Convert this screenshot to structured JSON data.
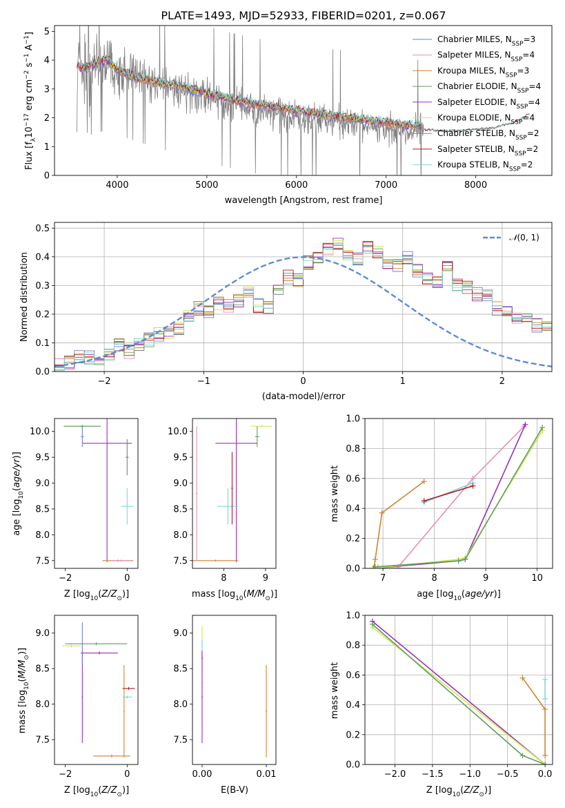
{
  "colors": {
    "Chabrier MILES": "#6b7fd7",
    "Salpeter MILES": "#e58fb8",
    "Kroupa MILES": "#d1842f",
    "Chabrier ELODIE": "#5f9e5f",
    "Salpeter ELODIE": "#9b2fb5",
    "Kroupa ELODIE": "#cfe84a",
    "Chabrier STELIB": "#7f7f7f",
    "Salpeter STELIB": "#b0181a",
    "Kroupa STELIB": "#7fd6d8",
    "gaussian": "#5b8bd6",
    "data": "#808080"
  },
  "chart_data": [
    {
      "type": "line",
      "title": "PLATE=1493, MJD=52933, FIBERID=0201, z=0.067",
      "xlabel": "wavelength [Angstrom, rest frame]",
      "ylabel": "Flux [f_λ 10^-17 erg cm^-2 s^-1 A^-1]",
      "xlim": [
        3300,
        8850
      ],
      "ylim": [
        0,
        5.2
      ],
      "xticks": [
        4000,
        5000,
        6000,
        7000,
        8000
      ],
      "yticks": [
        0,
        1,
        2,
        3,
        4,
        5
      ],
      "legend_position": "top-right",
      "legend": [
        "Chabrier MILES, N_SSP=3",
        "Salpeter MILES, N_SSP=4",
        "Kroupa MILES, N_SSP=3",
        "Chabrier ELODIE, N_SSP=4",
        "Salpeter ELODIE, N_SSP=4",
        "Kroupa ELODIE, N_SSP=4",
        "Chabrier STELIB, N_SSP=2",
        "Salpeter STELIB, N_SSP=2",
        "Kroupa STELIB, N_SSP=2"
      ],
      "data_continuum": {
        "x": [
          3550,
          3700,
          3900,
          4000,
          4200,
          4500,
          4800,
          5000,
          5200,
          5500,
          5800,
          6000,
          6200,
          6500,
          6800,
          7000,
          7200,
          7400
        ],
        "y": [
          3.9,
          3.6,
          3.8,
          3.6,
          3.4,
          3.1,
          2.9,
          2.7,
          2.5,
          2.3,
          2.1,
          2.0,
          1.95,
          1.85,
          1.7,
          1.6,
          1.55,
          1.5
        ]
      },
      "model_continuum": {
        "x": [
          3550,
          3600,
          3700,
          3800,
          3900,
          4000,
          4100,
          4200,
          4300,
          4400,
          4500,
          4600,
          4700,
          4800,
          4900,
          5000,
          5200,
          5400,
          5600,
          5800,
          6000,
          6200,
          6400,
          6600,
          6800,
          7000,
          7200,
          7400,
          7600,
          7800,
          8000,
          8200,
          8400,
          8600
        ],
        "y": [
          3.85,
          3.7,
          3.8,
          3.95,
          4.0,
          3.65,
          3.55,
          3.4,
          3.35,
          3.25,
          3.2,
          3.15,
          3.1,
          3.0,
          2.95,
          2.85,
          2.7,
          2.55,
          2.45,
          2.35,
          2.25,
          2.15,
          2.05,
          2.0,
          1.9,
          1.85,
          1.75,
          1.7,
          1.65,
          1.6,
          1.6,
          1.65,
          1.7,
          1.75
        ]
      },
      "stelib_extension": {
        "x": [
          7400,
          7600,
          7800,
          8000,
          8200,
          8300,
          8400,
          8500,
          8600
        ],
        "y": [
          1.6,
          1.55,
          1.55,
          1.6,
          1.65,
          1.75,
          1.8,
          1.95,
          2.15
        ]
      }
    },
    {
      "type": "line",
      "xlabel": "(data-model)/error",
      "ylabel": "Normed distribution",
      "xlim": [
        -2.5,
        2.5
      ],
      "ylim": [
        0,
        0.52
      ],
      "xticks": [
        -2,
        -1,
        0,
        1,
        2
      ],
      "yticks": [
        0.0,
        0.1,
        0.2,
        0.3,
        0.4,
        0.5
      ],
      "legend": [
        "𝒩(0, 1)"
      ],
      "legend_position": "top-right",
      "bin_width": 0.1,
      "bin_start": -2.5,
      "histogram": [
        0.02,
        0.03,
        0.05,
        0.05,
        0.04,
        0.06,
        0.09,
        0.07,
        0.09,
        0.11,
        0.13,
        0.14,
        0.15,
        0.19,
        0.22,
        0.21,
        0.24,
        0.23,
        0.25,
        0.28,
        0.23,
        0.22,
        0.29,
        0.33,
        0.32,
        0.38,
        0.4,
        0.43,
        0.44,
        0.41,
        0.39,
        0.43,
        0.42,
        0.38,
        0.37,
        0.4,
        0.35,
        0.33,
        0.31,
        0.36,
        0.3,
        0.29,
        0.27,
        0.26,
        0.22,
        0.21,
        0.19,
        0.18,
        0.16,
        0.15,
        0.14,
        0.13,
        0.12,
        0.1,
        0.09,
        0.08,
        0.07,
        0.05,
        0.06,
        0.05,
        0.04,
        0.04,
        0.04,
        0.03,
        0.03,
        0.02,
        0.02,
        0.02,
        0.01,
        0.01
      ]
    },
    {
      "type": "scatter",
      "xlabel": "Z [log10(Z/Z⊙)]",
      "ylabel": "age  [log10(age/yr)]",
      "xlim": [
        -2.35,
        0.35
      ],
      "ylim": [
        7.35,
        10.25
      ],
      "xticks": [
        -2,
        0
      ],
      "yticks": [
        7.5,
        8.0,
        8.5,
        9.0,
        9.5,
        10.0
      ],
      "errorbars": [
        {
          "series": "Kroupa ELODIE",
          "x": -1.5,
          "xerr": 0.55,
          "y": 10.1,
          "yerr": 0.02
        },
        {
          "series": "Chabrier ELODIE",
          "x": -1.45,
          "xerr": 0.6,
          "y": 10.1,
          "yerr": 0.03
        },
        {
          "series": "Salpeter ELODIE",
          "x": -0.65,
          "xerr": 0.8,
          "y": 9.77,
          "yerr": 2.3
        },
        {
          "series": "Chabrier MILES",
          "x": -1.45,
          "xerr": 0.05,
          "y": 9.9,
          "yerr": 0.2
        },
        {
          "series": "Kroupa STELIB",
          "x": 0.0,
          "xerr": 0.2,
          "y": 8.55,
          "yerr": 0.35
        },
        {
          "series": "Chabrier STELIB",
          "x": 0.0,
          "xerr": 0.05,
          "y": 9.5,
          "yerr": 0.35
        },
        {
          "series": "Kroupa MILES",
          "x": -0.3,
          "xerr": 0.5,
          "y": 7.5,
          "yerr": 0.02
        },
        {
          "series": "Salpeter MILES",
          "x": -0.2,
          "xerr": 0.3,
          "y": 7.5,
          "yerr": 0.02
        }
      ]
    },
    {
      "type": "scatter",
      "xlabel": "mass [log10(M/M⊙)]",
      "ylabel": "",
      "xlim": [
        7.25,
        9.25
      ],
      "ylim": [
        7.35,
        10.25
      ],
      "xticks": [
        8,
        9
      ],
      "yticks": [
        7.5,
        8.0,
        8.5,
        9.0,
        9.5,
        10.0
      ],
      "errorbars": [
        {
          "series": "Kroupa ELODIE",
          "x": 8.9,
          "xerr": 0.25,
          "y": 10.1,
          "yerr": 0.02
        },
        {
          "series": "Chabrier ELODIE",
          "x": 8.8,
          "xerr": 0.05,
          "y": 9.9,
          "yerr": 0.2
        },
        {
          "series": "Salpeter ELODIE",
          "x": 8.3,
          "xerr": 0.5,
          "y": 9.77,
          "yerr": 2.3
        },
        {
          "series": "Kroupa STELIB",
          "x": 8.1,
          "xerr": 0.25,
          "y": 8.55,
          "yerr": 0.35
        },
        {
          "series": "Salpeter STELIB",
          "x": 8.2,
          "xerr": 0.02,
          "y": 8.9,
          "yerr": 0.7
        },
        {
          "series": "Kroupa MILES",
          "x": 7.8,
          "xerr": 0.55,
          "y": 7.5,
          "yerr": 0.02
        },
        {
          "series": "Salpeter MILES",
          "x": 7.35,
          "xerr": 0.02,
          "y": 8.8,
          "yerr": 1.3
        }
      ]
    },
    {
      "type": "line",
      "xlabel": "age  [log10(age/yr)]",
      "ylabel": "mass weight",
      "xlim": [
        6.65,
        10.3
      ],
      "ylim": [
        0,
        1.0
      ],
      "xticks": [
        7,
        8,
        9,
        10
      ],
      "yticks": [
        0.0,
        0.2,
        0.4,
        0.6,
        0.8,
        1.0
      ],
      "series": [
        {
          "name": "Kroupa MILES",
          "x": [
            6.82,
            6.85,
            6.98,
            7.8
          ],
          "y": [
            0.0,
            0.06,
            0.37,
            0.58
          ]
        },
        {
          "name": "Salpeter MILES",
          "x": [
            6.9,
            7.3,
            8.75,
            9.75
          ],
          "y": [
            0.01,
            0.01,
            0.6,
            0.95
          ]
        },
        {
          "name": "Kroupa STELIB",
          "x": [
            7.8,
            8.75
          ],
          "y": [
            0.44,
            0.57
          ]
        },
        {
          "name": "Salpeter STELIB",
          "x": [
            7.8,
            8.75
          ],
          "y": [
            0.45,
            0.55
          ]
        },
        {
          "name": "Salpeter ELODIE",
          "x": [
            6.82,
            8.47,
            8.6,
            9.77
          ],
          "y": [
            0.0,
            0.05,
            0.06,
            0.96
          ]
        },
        {
          "name": "Kroupa ELODIE",
          "x": [
            6.8,
            8.47,
            8.6,
            10.1
          ],
          "y": [
            0.0,
            0.06,
            0.07,
            0.92
          ]
        },
        {
          "name": "Chabrier ELODIE",
          "x": [
            6.85,
            8.47,
            8.6,
            10.1
          ],
          "y": [
            0.01,
            0.05,
            0.06,
            0.94
          ]
        }
      ]
    },
    {
      "type": "scatter",
      "xlabel": "Z [log10(Z/Z⊙)]",
      "ylabel": "mass [log10(M/M⊙)]",
      "xlim": [
        -2.35,
        0.35
      ],
      "ylim": [
        7.15,
        9.25
      ],
      "xticks": [
        -2,
        0
      ],
      "yticks": [
        7.5,
        8.0,
        8.5,
        9.0
      ],
      "errorbars": [
        {
          "series": "Chabrier ELODIE",
          "x": -1.0,
          "xerr": 1.0,
          "y": 8.85,
          "yerr": 0.02
        },
        {
          "series": "Kroupa ELODIE",
          "x": -1.8,
          "xerr": 0.3,
          "y": 8.82,
          "yerr": 0.02
        },
        {
          "series": "Salpeter ELODIE",
          "x": -0.9,
          "xerr": 0.6,
          "y": 8.72,
          "yerr": 0.02
        },
        {
          "series": "Salpeter ELODIE",
          "x": -1.45,
          "xerr": 0.02,
          "y": 8.1,
          "yerr": 0.65
        },
        {
          "series": "Chabrier MILES",
          "x": -1.45,
          "xerr": 0.02,
          "y": 8.85,
          "yerr": 0.3
        },
        {
          "series": "Kroupa MILES",
          "x": -0.1,
          "xerr": 0.02,
          "y": 7.9,
          "yerr": 0.65
        },
        {
          "series": "Salpeter STELIB",
          "x": 0.05,
          "xerr": 0.2,
          "y": 8.22,
          "yerr": 0.02
        },
        {
          "series": "Kroupa STELIB",
          "x": 0.0,
          "xerr": 0.15,
          "y": 8.1,
          "yerr": 0.02
        },
        {
          "series": "Kroupa MILES",
          "x": -0.5,
          "xerr": 0.6,
          "y": 7.27,
          "yerr": 0.02
        }
      ]
    },
    {
      "type": "scatter",
      "xlabel": "E(B-V)",
      "ylabel": "",
      "xlim": [
        -0.0015,
        0.0115
      ],
      "ylim": [
        7.15,
        9.25
      ],
      "xticks": [
        0.0,
        0.01
      ],
      "xticklabels": [
        "0.00",
        "0.01"
      ],
      "yticks": [
        7.5,
        8.0,
        8.5,
        9.0
      ],
      "errorbars": [
        {
          "series": "Kroupa ELODIE",
          "x": 0.0,
          "xerr": 0.0001,
          "y": 8.8,
          "yerr": 0.3
        },
        {
          "series": "Salpeter STELIB",
          "x": 0.0,
          "xerr": 0.0001,
          "y": 8.65,
          "yerr": 0.1
        },
        {
          "series": "Kroupa STELIB",
          "x": 0.0,
          "xerr": 0.0001,
          "y": 8.3,
          "yerr": 0.6
        },
        {
          "series": "Salpeter ELODIE",
          "x": 0.0,
          "xerr": 0.0001,
          "y": 8.1,
          "yerr": 0.65
        },
        {
          "series": "Kroupa MILES",
          "x": 0.01,
          "xerr": 0.0001,
          "y": 7.9,
          "yerr": 0.65
        }
      ]
    },
    {
      "type": "line",
      "xlabel": "Z [log10(Z/Z⊙)]",
      "ylabel": "mass weight",
      "xlim": [
        -2.4,
        0.1
      ],
      "ylim": [
        0,
        1.0
      ],
      "xticks": [
        -2.0,
        -1.5,
        -1.0,
        -0.5,
        0.0
      ],
      "xticklabels": [
        "−2.0",
        "−1.5",
        "−1.0",
        "−0.5",
        "0.0"
      ],
      "yticks": [
        0.0,
        0.2,
        0.4,
        0.6,
        0.8,
        1.0
      ],
      "series": [
        {
          "name": "Salpeter ELODIE",
          "x": [
            -2.3,
            0.0
          ],
          "y": [
            0.96,
            0.0
          ]
        },
        {
          "name": "Kroupa ELODIE",
          "x": [
            -2.3,
            0.0
          ],
          "y": [
            0.92,
            0.0
          ]
        },
        {
          "name": "Chabrier ELODIE",
          "x": [
            -2.3,
            -0.3,
            0.0
          ],
          "y": [
            0.94,
            0.06,
            0.0
          ]
        },
        {
          "name": "Kroupa MILES",
          "x": [
            -0.3,
            0.0,
            0.0
          ],
          "y": [
            0.58,
            0.37,
            0.06
          ]
        },
        {
          "name": "Kroupa STELIB",
          "x": [
            0.0,
            0.0
          ],
          "y": [
            0.44,
            0.57
          ]
        }
      ]
    }
  ]
}
